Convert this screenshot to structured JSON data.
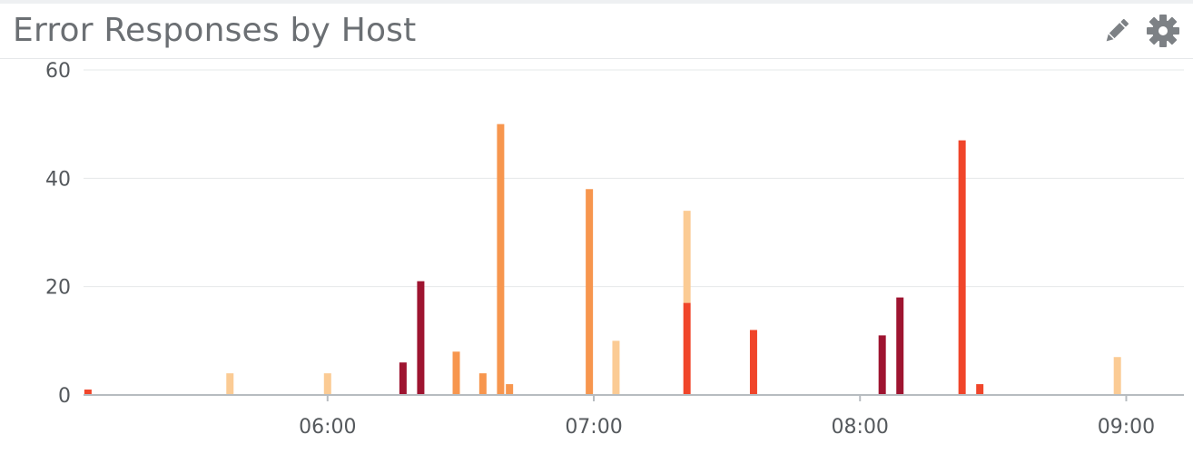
{
  "widget": {
    "title": "Error Responses by Host",
    "edit_icon": "pencil-icon",
    "settings_icon": "gear-icon"
  },
  "colors": {
    "host_dark_red": "#9e1430",
    "host_red": "#f0452a",
    "host_orange": "#f7964e",
    "host_light_orange": "#fbcb94",
    "grid": "#e6e8ea",
    "axis": "#b7bcc0",
    "icon": "#7d8185"
  },
  "chart_data": {
    "type": "bar",
    "stacked": true,
    "title": "Error Responses by Host",
    "xlabel": "",
    "ylabel": "",
    "ylim": [
      0,
      60
    ],
    "yticks": [
      0,
      20,
      40,
      60
    ],
    "xlim": [
      "05:05",
      "09:13"
    ],
    "xticks": [
      "06:00",
      "07:00",
      "08:00",
      "09:00"
    ],
    "grid": true,
    "legend": "none",
    "bars": [
      {
        "time": "05:06",
        "segments": [
          {
            "color": "#f0452a",
            "value": 1
          }
        ]
      },
      {
        "time": "05:38",
        "segments": [
          {
            "color": "#fbcb94",
            "value": 4
          }
        ]
      },
      {
        "time": "06:00",
        "segments": [
          {
            "color": "#fbcb94",
            "value": 4
          }
        ]
      },
      {
        "time": "06:17",
        "segments": [
          {
            "color": "#9e1430",
            "value": 6
          }
        ]
      },
      {
        "time": "06:21",
        "segments": [
          {
            "color": "#9e1430",
            "value": 21
          }
        ]
      },
      {
        "time": "06:29",
        "segments": [
          {
            "color": "#f7964e",
            "value": 8
          }
        ]
      },
      {
        "time": "06:35",
        "segments": [
          {
            "color": "#f7964e",
            "value": 4
          }
        ]
      },
      {
        "time": "06:39",
        "segments": [
          {
            "color": "#f7964e",
            "value": 50
          }
        ]
      },
      {
        "time": "06:41",
        "segments": [
          {
            "color": "#f7964e",
            "value": 2
          }
        ]
      },
      {
        "time": "06:59",
        "segments": [
          {
            "color": "#f7964e",
            "value": 38
          }
        ]
      },
      {
        "time": "07:05",
        "segments": [
          {
            "color": "#fbcb94",
            "value": 10
          }
        ]
      },
      {
        "time": "07:21",
        "segments": [
          {
            "color": "#f0452a",
            "value": 17
          },
          {
            "color": "#fbcb94",
            "value": 17
          }
        ]
      },
      {
        "time": "07:36",
        "segments": [
          {
            "color": "#f0452a",
            "value": 12
          }
        ]
      },
      {
        "time": "08:05",
        "segments": [
          {
            "color": "#9e1430",
            "value": 11
          }
        ]
      },
      {
        "time": "08:09",
        "segments": [
          {
            "color": "#9e1430",
            "value": 18
          }
        ]
      },
      {
        "time": "08:23",
        "segments": [
          {
            "color": "#f0452a",
            "value": 47
          }
        ]
      },
      {
        "time": "08:27",
        "segments": [
          {
            "color": "#f0452a",
            "value": 2
          }
        ]
      },
      {
        "time": "08:58",
        "segments": [
          {
            "color": "#fbcb94",
            "value": 7
          }
        ]
      }
    ]
  }
}
